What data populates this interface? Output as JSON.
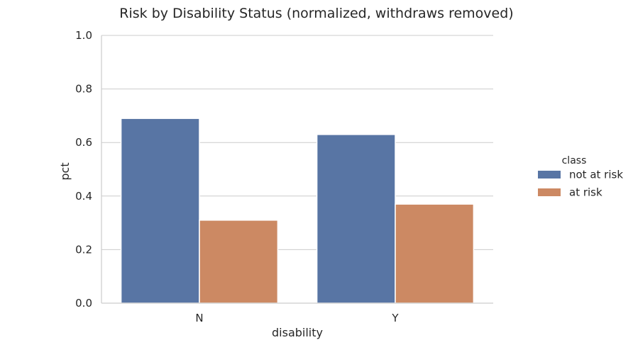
{
  "chart_data": {
    "type": "bar",
    "title": "Risk by Disability Status (normalized, withdraws removed)",
    "xlabel": "disability",
    "ylabel": "pct",
    "categories": [
      "N",
      "Y"
    ],
    "ylim": [
      0,
      1.0
    ],
    "yticks": [
      "0.0",
      "0.2",
      "0.4",
      "0.6",
      "0.8",
      "1.0"
    ],
    "grid": "horizontal",
    "legend": {
      "title": "class",
      "placement": "right"
    },
    "series": [
      {
        "name": "not at risk",
        "color": "#5875a4",
        "values": [
          0.69,
          0.63
        ]
      },
      {
        "name": "at risk",
        "color": "#cc8963",
        "values": [
          0.31,
          0.37
        ]
      }
    ]
  }
}
